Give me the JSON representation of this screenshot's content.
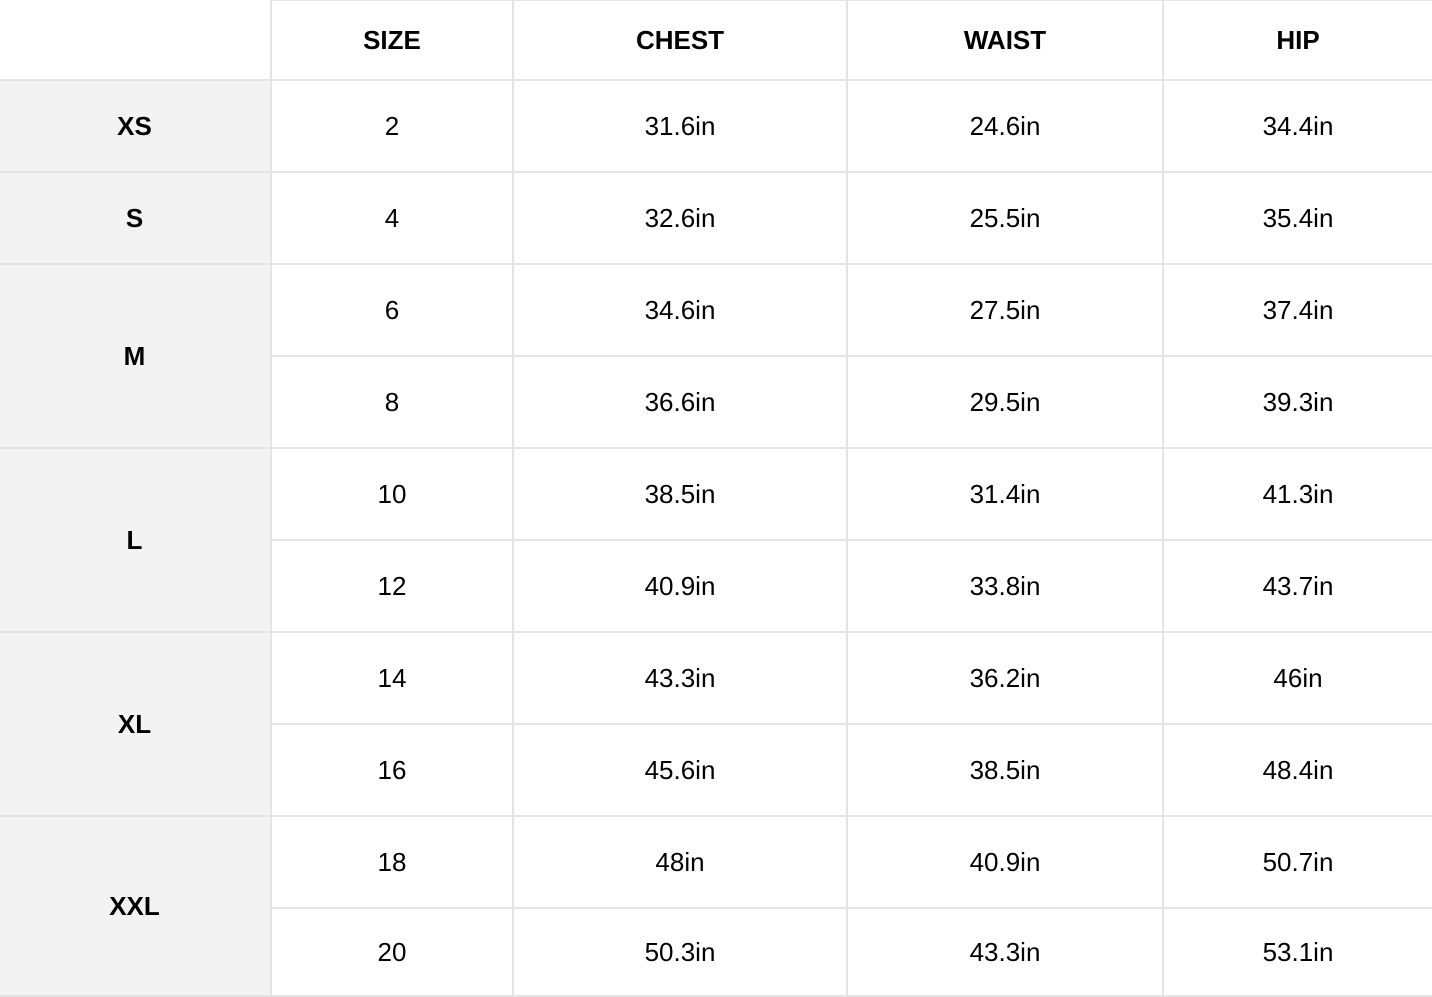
{
  "headers": [
    "",
    "SIZE",
    "CHEST",
    "WAIST",
    "HIP"
  ],
  "groups": [
    {
      "label": "XS",
      "rows": [
        {
          "size": "2",
          "chest": "31.6in",
          "waist": "24.6in",
          "hip": "34.4in"
        }
      ]
    },
    {
      "label": "S",
      "rows": [
        {
          "size": "4",
          "chest": "32.6in",
          "waist": "25.5in",
          "hip": "35.4in"
        }
      ]
    },
    {
      "label": "M",
      "rows": [
        {
          "size": "6",
          "chest": "34.6in",
          "waist": "27.5in",
          "hip": "37.4in"
        },
        {
          "size": "8",
          "chest": "36.6in",
          "waist": "29.5in",
          "hip": "39.3in"
        }
      ]
    },
    {
      "label": "L",
      "rows": [
        {
          "size": "10",
          "chest": "38.5in",
          "waist": "31.4in",
          "hip": "41.3in"
        },
        {
          "size": "12",
          "chest": "40.9in",
          "waist": "33.8in",
          "hip": "43.7in"
        }
      ]
    },
    {
      "label": "XL",
      "rows": [
        {
          "size": "14",
          "chest": "43.3in",
          "waist": "36.2in",
          "hip": "46in"
        },
        {
          "size": "16",
          "chest": "45.6in",
          "waist": "38.5in",
          "hip": "48.4in"
        }
      ]
    },
    {
      "label": "XXL",
      "rows": [
        {
          "size": "18",
          "chest": "48in",
          "waist": "40.9in",
          "hip": "50.7in"
        },
        {
          "size": "20",
          "chest": "50.3in",
          "waist": "43.3in",
          "hip": "53.1in"
        }
      ]
    }
  ],
  "colors": {
    "border": "#e4e4e4",
    "group_bg": "#f3f3f3"
  }
}
